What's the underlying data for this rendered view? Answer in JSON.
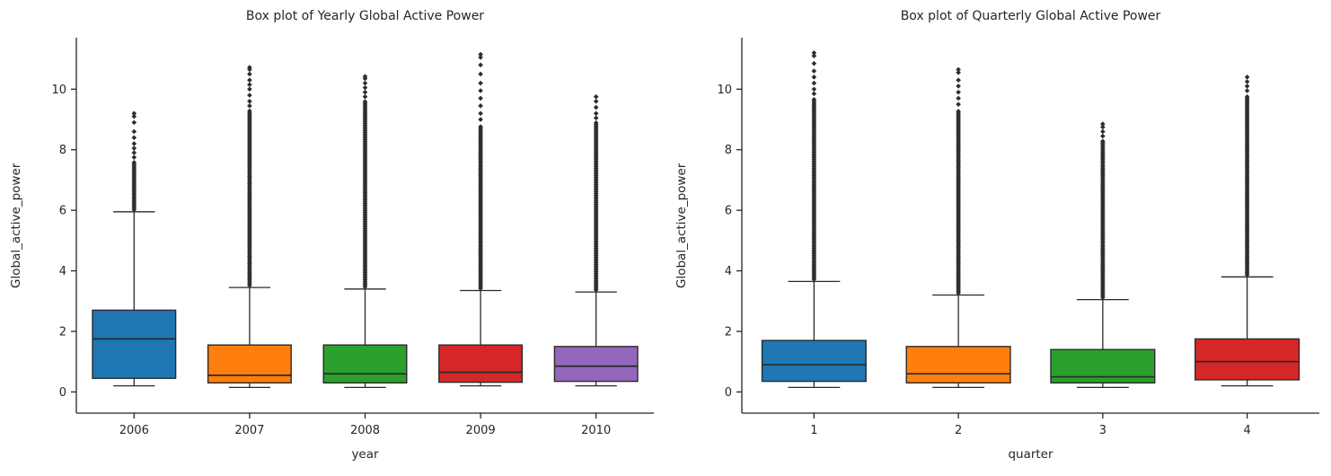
{
  "figure": {
    "background": "#ffffff",
    "text_color": "#262626",
    "axis_color": "#262626",
    "box_edge_color": "#2a2a2a",
    "flier_color": "#2e2e2e"
  },
  "chart_data": [
    {
      "type": "box",
      "title": "Box plot of Yearly Global Active Power",
      "xlabel": "year",
      "ylabel": "Global_active_power",
      "ylim": [
        -0.7,
        11.7
      ],
      "yticks": [
        0,
        2,
        4,
        6,
        8,
        10
      ],
      "grid": false,
      "legend": "none",
      "categories": [
        "2006",
        "2007",
        "2008",
        "2009",
        "2010"
      ],
      "boxes": [
        {
          "label": "2006",
          "color": "#1f77b4",
          "whislo": 0.2,
          "q1": 0.45,
          "med": 1.75,
          "q3": 2.7,
          "whishi": 5.95,
          "fliers_dense_max": 7.6,
          "fliers": [
            7.75,
            7.9,
            8.05,
            8.2,
            8.4,
            8.6,
            8.9,
            9.1,
            9.2
          ]
        },
        {
          "label": "2007",
          "color": "#ff7f0e",
          "whislo": 0.15,
          "q1": 0.3,
          "med": 0.55,
          "q3": 1.55,
          "whishi": 3.45,
          "fliers_dense_max": 9.3,
          "fliers": [
            9.45,
            9.6,
            9.8,
            10.0,
            10.15,
            10.3,
            10.5,
            10.65,
            10.72
          ]
        },
        {
          "label": "2008",
          "color": "#2ca02c",
          "whislo": 0.15,
          "q1": 0.3,
          "med": 0.6,
          "q3": 1.55,
          "whishi": 3.4,
          "fliers_dense_max": 9.6,
          "fliers": [
            9.75,
            9.9,
            10.05,
            10.2,
            10.35,
            10.42
          ]
        },
        {
          "label": "2009",
          "color": "#d62728",
          "whislo": 0.2,
          "q1": 0.32,
          "med": 0.65,
          "q3": 1.55,
          "whishi": 3.35,
          "fliers_dense_max": 8.8,
          "fliers": [
            9.0,
            9.2,
            9.45,
            9.7,
            9.95,
            10.2,
            10.5,
            10.8,
            11.05,
            11.15
          ]
        },
        {
          "label": "2010",
          "color": "#9467bd",
          "whislo": 0.2,
          "q1": 0.35,
          "med": 0.85,
          "q3": 1.5,
          "whishi": 3.3,
          "fliers_dense_max": 8.9,
          "fliers": [
            9.05,
            9.2,
            9.4,
            9.6,
            9.75
          ]
        }
      ]
    },
    {
      "type": "box",
      "title": "Box plot of Quarterly Global Active Power",
      "xlabel": "quarter",
      "ylabel": "Global_active_power",
      "ylim": [
        -0.7,
        11.7
      ],
      "yticks": [
        0,
        2,
        4,
        6,
        8,
        10
      ],
      "grid": false,
      "legend": "none",
      "categories": [
        "1",
        "2",
        "3",
        "4"
      ],
      "boxes": [
        {
          "label": "1",
          "color": "#1f77b4",
          "whislo": 0.15,
          "q1": 0.35,
          "med": 0.9,
          "q3": 1.7,
          "whishi": 3.65,
          "fliers_dense_max": 9.7,
          "fliers": [
            9.85,
            10.0,
            10.2,
            10.4,
            10.6,
            10.85,
            11.1,
            11.2
          ]
        },
        {
          "label": "2",
          "color": "#ff7f0e",
          "whislo": 0.15,
          "q1": 0.3,
          "med": 0.6,
          "q3": 1.5,
          "whishi": 3.2,
          "fliers_dense_max": 9.3,
          "fliers": [
            9.5,
            9.7,
            9.9,
            10.1,
            10.3,
            10.55,
            10.65
          ]
        },
        {
          "label": "3",
          "color": "#2ca02c",
          "whislo": 0.15,
          "q1": 0.3,
          "med": 0.5,
          "q3": 1.4,
          "whishi": 3.05,
          "fliers_dense_max": 8.3,
          "fliers": [
            8.45,
            8.6,
            8.75,
            8.85
          ]
        },
        {
          "label": "4",
          "color": "#d62728",
          "whislo": 0.2,
          "q1": 0.4,
          "med": 1.0,
          "q3": 1.75,
          "whishi": 3.8,
          "fliers_dense_max": 9.8,
          "fliers": [
            9.95,
            10.1,
            10.25,
            10.4
          ]
        }
      ]
    }
  ]
}
